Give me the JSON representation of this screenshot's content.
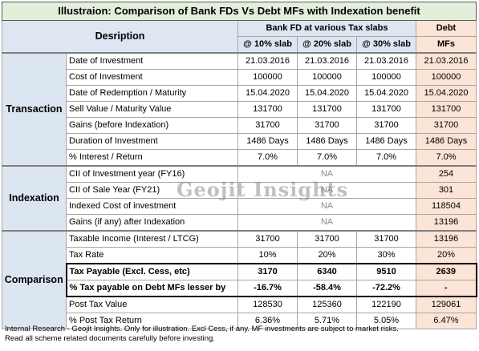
{
  "title": "Illustraion: Comparison of Bank FDs Vs Debt MFs with Indexation benefit",
  "header": {
    "description": "Desription",
    "bank_fd": "Bank FD at various Tax slabs",
    "debt_line1": "Debt",
    "slab10": "@ 10% slab",
    "slab20": "@ 20% slab",
    "slab30": "@ 30% slab",
    "debt_line2": "MFs"
  },
  "sections": {
    "transaction": "Transaction",
    "indexation": "Indexation",
    "comparison": "Comparison"
  },
  "rows": {
    "date_inv": {
      "label": "Date of Investment",
      "fd10": "21.03.2016",
      "fd20": "21.03.2016",
      "fd30": "21.03.2016",
      "debt": "21.03.2016"
    },
    "cost_inv": {
      "label": "Cost of Investment",
      "fd10": "100000",
      "fd20": "100000",
      "fd30": "100000",
      "debt": "100000"
    },
    "date_red": {
      "label": "Date of Redemption / Maturity",
      "fd10": "15.04.2020",
      "fd20": "15.04.2020",
      "fd30": "15.04.2020",
      "debt": "15.04.2020"
    },
    "sell_val": {
      "label": "Sell Value / Maturity Value",
      "fd10": "131700",
      "fd20": "131700",
      "fd30": "131700",
      "debt": "131700"
    },
    "gains": {
      "label": "Gains (before Indexation)",
      "fd10": "31700",
      "fd20": "31700",
      "fd30": "31700",
      "debt": "31700"
    },
    "duration": {
      "label": "Duration of Investment",
      "fd10": "1486 Days",
      "fd20": "1486 Days",
      "fd30": "1486 Days",
      "debt": "1486 Days"
    },
    "interest": {
      "label": "% Interest / Return",
      "fd10": "7.0%",
      "fd20": "7.0%",
      "fd30": "7.0%",
      "debt": "7.0%"
    },
    "cii_inv": {
      "label": "CII of Investment year (FY16)",
      "na": "NA",
      "debt": "254"
    },
    "cii_sale": {
      "label": "CII of Sale Year (FY21)",
      "na": "NA",
      "debt": "301"
    },
    "indexed_cost": {
      "label": "Indexed Cost of investment",
      "na": "NA",
      "debt": "118504"
    },
    "gains_after": {
      "label": "Gains (if any) after Indexation",
      "na": "NA",
      "debt": "13196"
    },
    "taxable": {
      "label": "Taxable Income (Interest / LTCG)",
      "fd10": "31700",
      "fd20": "31700",
      "fd30": "31700",
      "debt": "13196"
    },
    "tax_rate": {
      "label": "Tax Rate",
      "fd10": "10%",
      "fd20": "20%",
      "fd30": "30%",
      "debt": "20%"
    },
    "tax_payable": {
      "label": "Tax Payable (Excl. Cess, etc)",
      "fd10": "3170",
      "fd20": "6340",
      "fd30": "9510",
      "debt": "2639"
    },
    "tax_lesser": {
      "label": "% Tax payable on Debt MFs lesser by",
      "fd10": "-16.7%",
      "fd20": "-58.4%",
      "fd30": "-72.2%",
      "debt": "-"
    },
    "post_tax": {
      "label": "Post Tax Value",
      "fd10": "128530",
      "fd20": "125360",
      "fd30": "122190",
      "debt": "129061"
    },
    "post_ret": {
      "label": "% Post Tax Return",
      "fd10": "6.36%",
      "fd20": "5.71%",
      "fd30": "5.05%",
      "debt": "6.47%"
    }
  },
  "watermark": "Geojit Insights",
  "footer": {
    "line1": "Internal Research - Geojit Insights. Only for illustration. Excl Cess, if any. MF investments are subject to market risks.",
    "line2": "Read all scheme related documents carefully before investing."
  },
  "colors": {
    "title_bg": "#e2efda",
    "header_bg": "#dde6f1",
    "debt_bg": "#fce4d6"
  }
}
